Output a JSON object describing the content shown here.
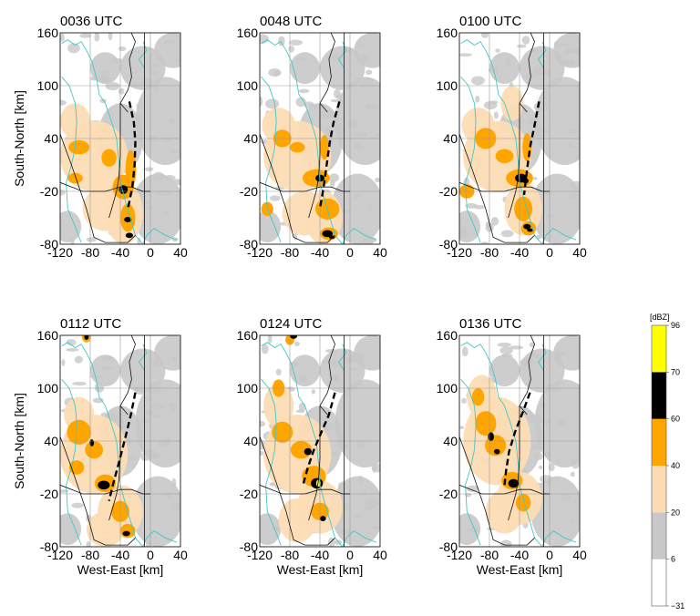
{
  "chart_data": {
    "type": "radar_reflectivity_map_panels",
    "panels": [
      {
        "title": "0036 UTC",
        "echo_line": [
          [
            -28,
            82
          ],
          [
            -22,
            58
          ],
          [
            -20,
            36
          ],
          [
            -21,
            10
          ],
          [
            -24,
            -15
          ],
          [
            -30,
            -40
          ]
        ]
      },
      {
        "title": "0048 UTC",
        "echo_line": [
          [
            -14,
            82
          ],
          [
            -22,
            58
          ],
          [
            -27,
            35
          ],
          [
            -31,
            10
          ],
          [
            -35,
            -15
          ],
          [
            -40,
            -40
          ]
        ]
      },
      {
        "title": "0100 UTC",
        "echo_line": [
          [
            -14,
            82
          ],
          [
            -20,
            55
          ],
          [
            -26,
            30
          ],
          [
            -30,
            5
          ],
          [
            -34,
            -24
          ]
        ]
      },
      {
        "title": "0112 UTC",
        "echo_line": [
          [
            -20,
            95
          ],
          [
            -26,
            70
          ],
          [
            -33,
            45
          ],
          [
            -42,
            15
          ],
          [
            -50,
            -10
          ],
          [
            -55,
            -28
          ]
        ]
      },
      {
        "title": "0124 UTC",
        "echo_line": [
          [
            -20,
            95
          ],
          [
            -28,
            70
          ],
          [
            -38,
            50
          ],
          [
            -48,
            30
          ],
          [
            -56,
            10
          ],
          [
            -62,
            -8
          ]
        ]
      },
      {
        "title": "0136 UTC",
        "echo_line": [
          [
            -26,
            95
          ],
          [
            -36,
            72
          ],
          [
            -46,
            50
          ],
          [
            -54,
            28
          ],
          [
            -58,
            5
          ],
          [
            -60,
            -10
          ]
        ]
      }
    ],
    "x_axis": {
      "label": "West-East [km]",
      "ticks": [
        -120,
        -80,
        -40,
        0,
        40
      ],
      "tick_labels": [
        "-120",
        "-80",
        "-40",
        "0",
        "40"
      ],
      "lim": [
        -120,
        40
      ]
    },
    "y_axis": {
      "label": "South-North [km]",
      "ticks": [
        -80,
        -20,
        40,
        100,
        160
      ],
      "tick_labels": [
        "-80",
        "-20",
        "40",
        "100",
        "160"
      ],
      "lim": [
        -80,
        160
      ]
    },
    "grid": true,
    "colorbar": {
      "unit": "[dBZ]",
      "bounds": [
        -31,
        6,
        20,
        40,
        60,
        70,
        96
      ],
      "tick_labels": [
        "−31",
        "6",
        "20",
        "40",
        "60",
        "70",
        "96"
      ],
      "colors": [
        "#ffffff",
        "#c8c8c8",
        "#fcdcb4",
        "#fea500",
        "#000000",
        "#ffff00"
      ],
      "placement": "right"
    },
    "colors": {
      "contour": "#40c8c8",
      "light_echo": "#fcdcb4",
      "moderate_echo": "#fea500",
      "strong_echo": "#000000",
      "extreme_echo": "#ffff00",
      "clear_air": "#c8c8c8"
    }
  }
}
